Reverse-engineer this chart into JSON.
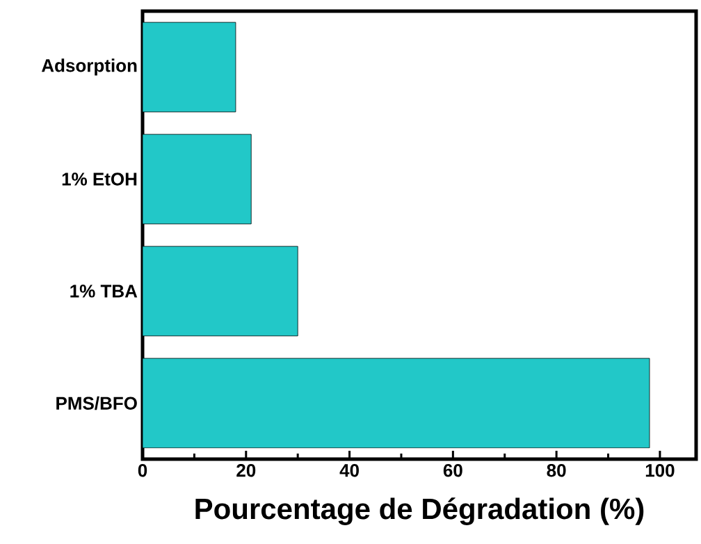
{
  "chart_data": {
    "type": "bar",
    "orientation": "horizontal",
    "xlabel": "Pourcentage de Dégradation (%)",
    "categories": [
      "Adsorption",
      "1% EtOH",
      "1% TBA",
      "PMS/BFO"
    ],
    "values": [
      18,
      21,
      30,
      98
    ],
    "color": "#22c8c8",
    "xlim": [
      0,
      107
    ],
    "xticks": [
      0,
      20,
      40,
      60,
      80,
      100
    ]
  }
}
